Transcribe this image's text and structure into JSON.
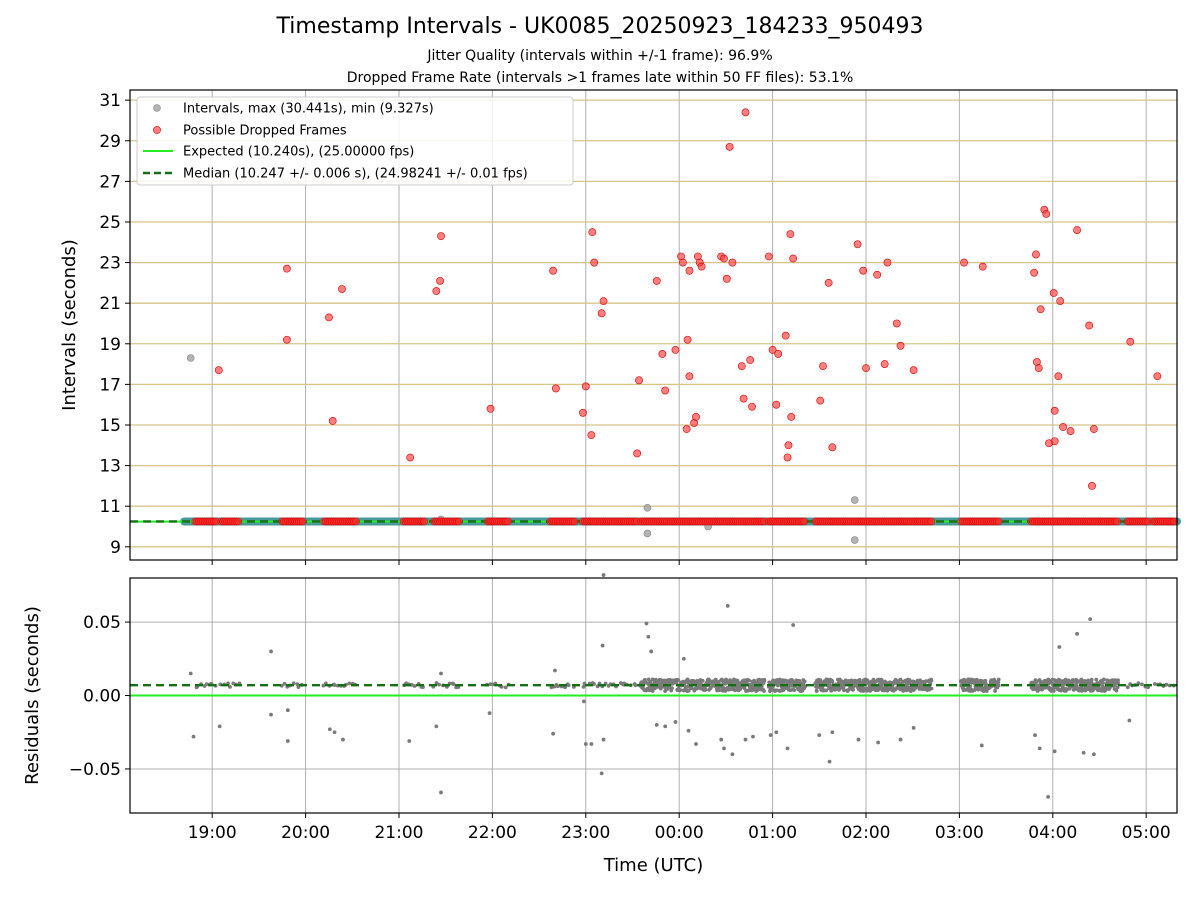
{
  "chart_data": [
    {
      "type": "scatter",
      "panel": "intervals",
      "title": "Timestamp Intervals - UK0085_20250923_184233_950493",
      "subtitle_lines": [
        "Jitter Quality (intervals within +/-1 frame): 96.9%",
        "Dropped Frame Rate (intervals >1 frames late within 50 FF files): 53.1%"
      ],
      "xlabel": "",
      "ylabel": "Intervals (seconds)",
      "xlim": [
        18.12,
        29.33
      ],
      "ylim": [
        8.35,
        31.5
      ],
      "yticks": [
        9,
        11,
        13,
        15,
        17,
        19,
        21,
        23,
        25,
        27,
        29,
        31
      ],
      "ytick_labels": [
        "9",
        "11",
        "13",
        "15",
        "17",
        "19",
        "21",
        "23",
        "25",
        "27",
        "29",
        "31"
      ],
      "grid": true,
      "hlines_at_odd_seconds": true,
      "legend": {
        "placement": "top-left",
        "entries": [
          "Intervals, max (30.441s), min (9.327s)",
          "Possible Dropped Frames",
          "Expected (10.240s), (25.00000 fps)",
          "Median (10.247 +/- 0.006 s), (24.98241 +/- 0.01 fps)"
        ]
      },
      "colors": {
        "intervals": "#a0a0a0",
        "dropped": "#ff3b3b",
        "expected": "#22ee22",
        "median": "#157015",
        "band": "#4a9a9a",
        "hline": "#d6c48a"
      },
      "series": [
        {
          "name": "Intervals",
          "points": [
            [
              18.77,
              18.3
            ],
            [
              21.45,
              10.35
            ],
            [
              23.66,
              9.66
            ],
            [
              23.66,
              10.92
            ],
            [
              24.31,
              10.0
            ],
            [
              25.88,
              9.33
            ],
            [
              25.88,
              11.3
            ]
          ]
        },
        {
          "name": "Possible Dropped Frames",
          "points": [
            [
              19.07,
              17.7
            ],
            [
              19.8,
              22.7
            ],
            [
              19.8,
              19.2
            ],
            [
              20.25,
              20.3
            ],
            [
              20.29,
              15.2
            ],
            [
              20.39,
              21.7
            ],
            [
              21.12,
              13.4
            ],
            [
              21.4,
              21.6
            ],
            [
              21.44,
              22.1
            ],
            [
              21.45,
              24.3
            ],
            [
              21.98,
              15.8
            ],
            [
              22.65,
              22.6
            ],
            [
              22.68,
              16.8
            ],
            [
              22.97,
              15.6
            ],
            [
              23.0,
              16.9
            ],
            [
              23.06,
              14.5
            ],
            [
              23.07,
              24.5
            ],
            [
              23.09,
              23.0
            ],
            [
              23.17,
              20.5
            ],
            [
              23.19,
              21.1
            ],
            [
              23.55,
              13.6
            ],
            [
              23.57,
              17.2
            ],
            [
              23.76,
              22.1
            ],
            [
              23.82,
              18.5
            ],
            [
              23.85,
              16.7
            ],
            [
              23.96,
              18.7
            ],
            [
              24.02,
              23.3
            ],
            [
              24.04,
              23.0
            ],
            [
              24.08,
              14.8
            ],
            [
              24.09,
              19.2
            ],
            [
              24.11,
              17.4
            ],
            [
              24.11,
              22.6
            ],
            [
              24.16,
              15.1
            ],
            [
              24.18,
              15.4
            ],
            [
              24.2,
              23.3
            ],
            [
              24.22,
              23.0
            ],
            [
              24.24,
              22.8
            ],
            [
              24.45,
              23.3
            ],
            [
              24.48,
              23.2
            ],
            [
              24.51,
              22.2
            ],
            [
              24.54,
              28.7
            ],
            [
              24.57,
              23.0
            ],
            [
              24.67,
              17.9
            ],
            [
              24.69,
              16.3
            ],
            [
              24.71,
              30.4
            ],
            [
              24.76,
              18.2
            ],
            [
              24.78,
              15.9
            ],
            [
              24.96,
              23.3
            ],
            [
              25.0,
              18.7
            ],
            [
              25.04,
              16.0
            ],
            [
              25.06,
              18.5
            ],
            [
              25.14,
              19.4
            ],
            [
              25.16,
              13.4
            ],
            [
              25.17,
              14.0
            ],
            [
              25.19,
              24.4
            ],
            [
              25.2,
              15.4
            ],
            [
              25.22,
              23.2
            ],
            [
              25.51,
              16.2
            ],
            [
              25.54,
              17.9
            ],
            [
              25.6,
              22.0
            ],
            [
              25.64,
              13.9
            ],
            [
              25.91,
              23.9
            ],
            [
              25.97,
              22.6
            ],
            [
              26.0,
              17.8
            ],
            [
              26.12,
              22.4
            ],
            [
              26.2,
              18.0
            ],
            [
              26.23,
              23.0
            ],
            [
              26.33,
              20.0
            ],
            [
              26.37,
              18.9
            ],
            [
              26.51,
              17.7
            ],
            [
              27.05,
              23.0
            ],
            [
              27.25,
              22.8
            ],
            [
              27.8,
              22.5
            ],
            [
              27.82,
              23.4
            ],
            [
              27.83,
              18.1
            ],
            [
              27.85,
              17.8
            ],
            [
              27.87,
              20.7
            ],
            [
              27.91,
              25.6
            ],
            [
              27.93,
              25.4
            ],
            [
              27.96,
              14.1
            ],
            [
              28.01,
              21.5
            ],
            [
              28.02,
              15.7
            ],
            [
              28.02,
              14.2
            ],
            [
              28.06,
              17.4
            ],
            [
              28.08,
              21.1
            ],
            [
              28.11,
              14.9
            ],
            [
              28.19,
              14.7
            ],
            [
              28.26,
              24.6
            ],
            [
              28.39,
              19.9
            ],
            [
              28.42,
              12.0
            ],
            [
              28.44,
              14.8
            ],
            [
              28.83,
              19.1
            ],
            [
              29.12,
              17.4
            ]
          ],
          "baseline_segments": [
            [
              18.82,
              19.04
            ],
            [
              19.1,
              19.28
            ],
            [
              19.75,
              19.97
            ],
            [
              20.2,
              20.55
            ],
            [
              21.05,
              21.27
            ],
            [
              21.38,
              21.65
            ],
            [
              21.95,
              22.17
            ],
            [
              22.62,
              22.88
            ],
            [
              22.97,
              23.55
            ],
            [
              23.59,
              24.92
            ],
            [
              24.96,
              25.35
            ],
            [
              25.46,
              26.7
            ],
            [
              27.02,
              27.42
            ],
            [
              27.77,
              28.7
            ],
            [
              28.8,
              29.03
            ],
            [
              29.08,
              29.3
            ]
          ]
        }
      ],
      "expected": 10.24,
      "median": 10.247
    },
    {
      "type": "scatter",
      "panel": "residuals",
      "xlabel": "Time (UTC)",
      "ylabel": "Residuals (seconds)",
      "xlim": [
        18.12,
        29.33
      ],
      "ylim": [
        -0.08,
        0.08
      ],
      "yticks": [
        -0.05,
        0.0,
        0.05
      ],
      "ytick_labels": [
        "−0.05",
        "0.00",
        "0.05"
      ],
      "xticks": [
        19,
        20,
        21,
        22,
        23,
        24,
        25,
        26,
        27,
        28,
        29
      ],
      "xtick_labels": [
        "19:00",
        "20:00",
        "21:00",
        "22:00",
        "23:00",
        "00:00",
        "01:00",
        "02:00",
        "03:00",
        "04:00",
        "05:00"
      ],
      "grid": true,
      "expected_line": 0.0,
      "median_line": 0.007,
      "colors": {
        "points": "#7a7a7a"
      },
      "outliers": [
        [
          18.77,
          0.015
        ],
        [
          18.8,
          -0.028
        ],
        [
          19.08,
          -0.021
        ],
        [
          19.63,
          0.03
        ],
        [
          19.63,
          -0.013
        ],
        [
          19.81,
          -0.01
        ],
        [
          19.81,
          -0.031
        ],
        [
          20.26,
          -0.023
        ],
        [
          20.31,
          -0.025
        ],
        [
          20.4,
          -0.03
        ],
        [
          21.11,
          -0.031
        ],
        [
          21.4,
          -0.021
        ],
        [
          21.45,
          -0.066
        ],
        [
          21.45,
          0.015
        ],
        [
          21.97,
          -0.012
        ],
        [
          22.65,
          -0.026
        ],
        [
          22.67,
          0.017
        ],
        [
          22.98,
          -0.004
        ],
        [
          23.0,
          -0.033
        ],
        [
          23.06,
          -0.033
        ],
        [
          23.17,
          -0.053
        ],
        [
          23.18,
          0.034
        ],
        [
          23.19,
          0.082
        ],
        [
          23.19,
          -0.03
        ],
        [
          23.65,
          0.049
        ],
        [
          23.67,
          0.04
        ],
        [
          23.7,
          0.03
        ],
        [
          23.76,
          -0.02
        ],
        [
          23.85,
          -0.021
        ],
        [
          23.96,
          -0.018
        ],
        [
          24.05,
          0.025
        ],
        [
          24.1,
          -0.024
        ],
        [
          24.18,
          -0.033
        ],
        [
          24.45,
          -0.03
        ],
        [
          24.48,
          -0.036
        ],
        [
          24.52,
          0.061
        ],
        [
          24.57,
          -0.04
        ],
        [
          24.71,
          -0.03
        ],
        [
          24.79,
          -0.028
        ],
        [
          24.98,
          -0.027
        ],
        [
          25.04,
          -0.025
        ],
        [
          25.16,
          -0.036
        ],
        [
          25.22,
          0.048
        ],
        [
          25.5,
          -0.027
        ],
        [
          25.61,
          -0.045
        ],
        [
          25.64,
          -0.025
        ],
        [
          25.92,
          -0.03
        ],
        [
          26.13,
          -0.032
        ],
        [
          26.37,
          -0.03
        ],
        [
          26.51,
          -0.022
        ],
        [
          27.24,
          -0.034
        ],
        [
          27.81,
          -0.027
        ],
        [
          27.86,
          -0.036
        ],
        [
          27.95,
          -0.069
        ],
        [
          28.02,
          -0.038
        ],
        [
          28.07,
          0.033
        ],
        [
          28.26,
          0.042
        ],
        [
          28.33,
          -0.039
        ],
        [
          28.4,
          0.052
        ],
        [
          28.44,
          -0.04
        ],
        [
          28.82,
          -0.017
        ]
      ]
    }
  ]
}
